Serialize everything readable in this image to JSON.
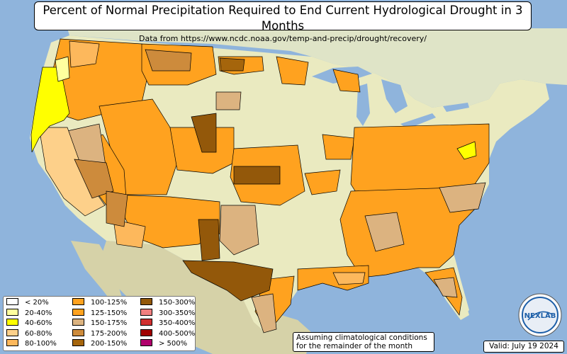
{
  "title": "Percent of Normal Precipitation Required to End Current Hydrological Drought in 3 Months",
  "subtitle": "Data from https://www.ncdc.noaa.gov/temp-and-precip/drought/recovery/",
  "legend": [
    {
      "label": "< 20%",
      "color": "#ffffff"
    },
    {
      "label": "20-40%",
      "color": "#ffff9f"
    },
    {
      "label": "40-60%",
      "color": "#ffff00"
    },
    {
      "label": "60-80%",
      "color": "#fdd08a"
    },
    {
      "label": "80-100%",
      "color": "#fdb85c"
    },
    {
      "label": "100-125%",
      "color": "#ffa21f"
    },
    {
      "label": "125-150%",
      "color": "#ffa21f"
    },
    {
      "label": "150-175%",
      "color": "#dcb380"
    },
    {
      "label": "175-200%",
      "color": "#cd8b3c"
    },
    {
      "label": "200-150%",
      "color": "#a5650c"
    },
    {
      "label": "150-300%",
      "color": "#93580a"
    },
    {
      "label": "300-350%",
      "color": "#f08080"
    },
    {
      "label": "350-400%",
      "color": "#d03030"
    },
    {
      "label": "400-500%",
      "color": "#a00000"
    },
    {
      "label": "> 500%",
      "color": "#b0006c"
    }
  ],
  "note": {
    "line1": "Assuming climatological conditions",
    "line2": "for the remainder of the month"
  },
  "valid": "Valid: July 19 2024",
  "logo": {
    "text": "NEXLAB"
  },
  "colors": {
    "ocean": "#8fb4dc",
    "land_base": "#eaeac0",
    "mexico": "#d6d2a8",
    "canada": "#dfe4c7"
  }
}
